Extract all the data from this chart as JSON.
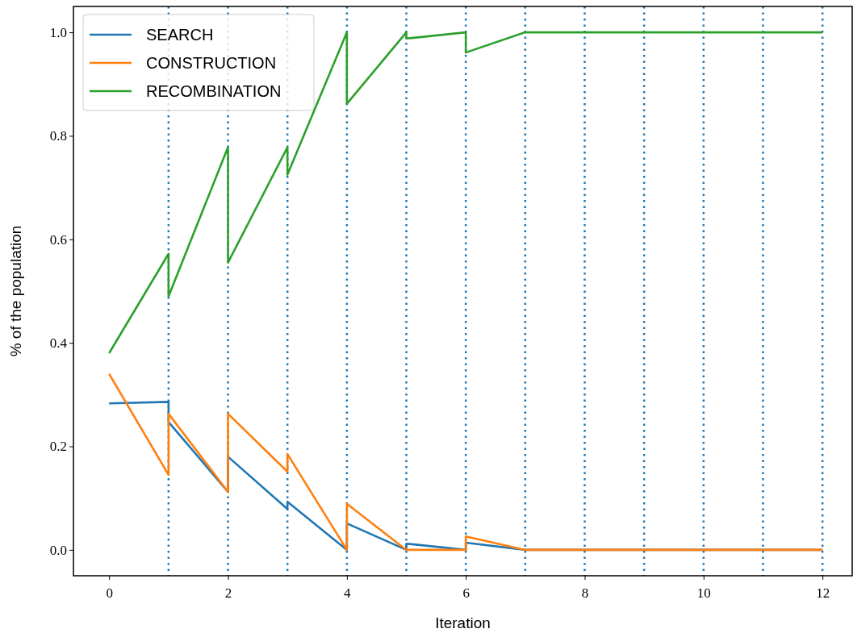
{
  "chart_data": {
    "type": "line",
    "xlabel": "Iteration",
    "ylabel": "% of the population",
    "xlim": [
      -0.6,
      12.5
    ],
    "ylim": [
      -0.05,
      1.05
    ],
    "xticks": [
      0,
      2,
      4,
      6,
      8,
      10,
      12
    ],
    "yticks": [
      {
        "value": 0,
        "label": "0.0"
      },
      {
        "value": 0.2,
        "label": "0.2"
      },
      {
        "value": 0.4,
        "label": "0.4"
      },
      {
        "value": 0.6,
        "label": "0.6"
      },
      {
        "value": 0.8,
        "label": "0.8"
      },
      {
        "value": 1,
        "label": "1.0"
      }
    ],
    "grid": false,
    "legend": "top left",
    "line_style": "solid",
    "marker": "none",
    "series": [
      {
        "name": "SEARCH",
        "color": "#1f77b4",
        "x": [
          0,
          1,
          1,
          2,
          2,
          3,
          3,
          4,
          4,
          5,
          5,
          6,
          6,
          7,
          8,
          9,
          10,
          11,
          12
        ],
        "values": [
          0.283,
          0.286,
          0.247,
          0.112,
          0.18,
          0.079,
          0.093,
          0,
          0.051,
          0,
          0.012,
          0,
          0.014,
          0,
          0,
          0,
          0,
          0,
          0
        ]
      },
      {
        "name": "CONSTRUCTION",
        "color": "#ff7f0e",
        "x": [
          0,
          1,
          1,
          2,
          2,
          3,
          3,
          4,
          4,
          5,
          5,
          6,
          6,
          7,
          8,
          9,
          10,
          11,
          12
        ],
        "values": [
          0.34,
          0.145,
          0.263,
          0.112,
          0.263,
          0.151,
          0.185,
          0,
          0.089,
          0,
          0,
          0,
          0.026,
          0,
          0,
          0,
          0,
          0,
          0
        ]
      },
      {
        "name": "RECOMBINATION",
        "color": "#2ca02c",
        "x": [
          0,
          1,
          1,
          2,
          2,
          3,
          3,
          4,
          4,
          5,
          5,
          6,
          6,
          7,
          8,
          9,
          10,
          11,
          12
        ],
        "values": [
          0.38,
          0.572,
          0.49,
          0.778,
          0.555,
          0.778,
          0.725,
          1,
          0.862,
          1,
          0.988,
          1,
          0.961,
          1,
          1,
          1,
          1,
          1,
          1
        ]
      }
    ],
    "ref_lines": [
      {
        "axis": "x",
        "value": 1,
        "color": "#1f77b4",
        "line_style": "dotted"
      },
      {
        "axis": "x",
        "value": 2,
        "color": "#1f77b4",
        "line_style": "dotted"
      },
      {
        "axis": "x",
        "value": 3,
        "color": "#1f77b4",
        "line_style": "dotted"
      },
      {
        "axis": "x",
        "value": 4,
        "color": "#1f77b4",
        "line_style": "dotted"
      },
      {
        "axis": "x",
        "value": 5,
        "color": "#1f77b4",
        "line_style": "dotted"
      },
      {
        "axis": "x",
        "value": 6,
        "color": "#1f77b4",
        "line_style": "dotted"
      },
      {
        "axis": "x",
        "value": 7,
        "color": "#1f77b4",
        "line_style": "dotted"
      },
      {
        "axis": "x",
        "value": 8,
        "color": "#1f77b4",
        "line_style": "dotted"
      },
      {
        "axis": "x",
        "value": 9,
        "color": "#1f77b4",
        "line_style": "dotted"
      },
      {
        "axis": "x",
        "value": 10,
        "color": "#1f77b4",
        "line_style": "dotted"
      },
      {
        "axis": "x",
        "value": 11,
        "color": "#1f77b4",
        "line_style": "dotted"
      },
      {
        "axis": "x",
        "value": 12,
        "color": "#1f77b4",
        "line_style": "dotted"
      }
    ]
  }
}
